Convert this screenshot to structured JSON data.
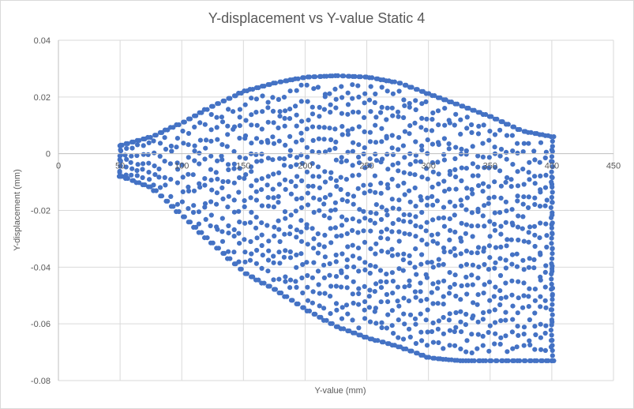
{
  "chart_data": {
    "type": "scatter",
    "title": "Y-displacement vs Y-value Static 4",
    "xlabel": "Y-value (mm)",
    "ylabel": "Y-displacement (mm)",
    "xlim": [
      0,
      450
    ],
    "ylim": [
      -0.08,
      0.04
    ],
    "x_ticks": [
      0,
      50,
      100,
      150,
      200,
      250,
      300,
      350,
      400,
      450
    ],
    "y_ticks": [
      -0.08,
      -0.06,
      -0.04,
      -0.02,
      0,
      0.02,
      0.04
    ],
    "x_tick_labels": [
      "0",
      "50",
      "100",
      "150",
      "200",
      "250",
      "300",
      "350",
      "400",
      "450"
    ],
    "y_tick_labels": [
      "-0.08",
      "-0.06",
      "-0.04",
      "-0.02",
      "0",
      "0.02",
      "0.04"
    ],
    "grid": true,
    "legend": "none",
    "marker_color": "#4472c4",
    "series": [
      {
        "x_range": [
          50,
          400
        ],
        "approx_point_count": 2000,
        "upper_envelope": [
          [
            50,
            0.003
          ],
          [
            75,
            0.006
          ],
          [
            100,
            0.011
          ],
          [
            125,
            0.017
          ],
          [
            150,
            0.022
          ],
          [
            175,
            0.025
          ],
          [
            200,
            0.027
          ],
          [
            225,
            0.0275
          ],
          [
            250,
            0.027
          ],
          [
            275,
            0.025
          ],
          [
            300,
            0.021
          ],
          [
            325,
            0.017
          ],
          [
            350,
            0.013
          ],
          [
            375,
            0.008
          ],
          [
            400,
            0.006
          ]
        ],
        "lower_envelope": [
          [
            50,
            -0.008
          ],
          [
            75,
            -0.012
          ],
          [
            100,
            -0.022
          ],
          [
            125,
            -0.032
          ],
          [
            150,
            -0.042
          ],
          [
            175,
            -0.048
          ],
          [
            200,
            -0.055
          ],
          [
            225,
            -0.061
          ],
          [
            250,
            -0.065
          ],
          [
            275,
            -0.068
          ],
          [
            300,
            -0.072
          ],
          [
            325,
            -0.073
          ],
          [
            350,
            -0.073
          ],
          [
            375,
            -0.073
          ],
          [
            400,
            -0.073
          ]
        ]
      }
    ]
  }
}
